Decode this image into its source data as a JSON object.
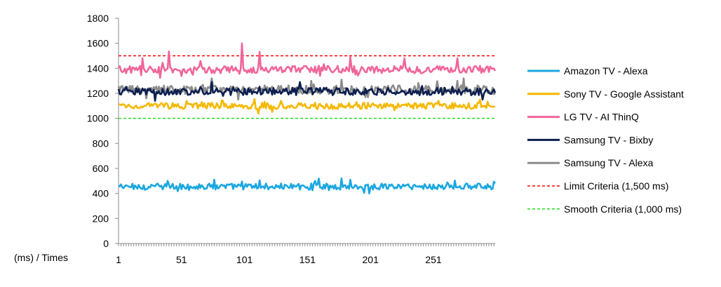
{
  "chart_data": {
    "type": "line",
    "title": "",
    "xlabel": "(ms) / Times",
    "ylabel": "",
    "ylim": [
      0,
      1800
    ],
    "y_ticks": [
      0,
      200,
      400,
      600,
      800,
      1000,
      1200,
      1400,
      1600,
      1800
    ],
    "x_range": [
      1,
      300
    ],
    "x_tick_labels": [
      "1",
      "51",
      "101",
      "151",
      "201",
      "251"
    ],
    "legend_position": "right",
    "grid": false,
    "series": [
      {
        "name": "Amazon TV - Alexa",
        "color": "#1aa7e0",
        "style": "solid",
        "mean": 455,
        "spread": 25,
        "peaks": [
          [
            40,
            500
          ],
          [
            77,
            510
          ],
          [
            99,
            495
          ],
          [
            113,
            505
          ],
          [
            157,
            500
          ],
          [
            185,
            510
          ],
          [
            196,
            405
          ],
          [
            200,
            400
          ]
        ]
      },
      {
        "name": "Sony TV - Google Assistant",
        "color": "#f5b800",
        "style": "solid",
        "mean": 1100,
        "spread": 25,
        "peaks": [
          [
            130,
            1140
          ],
          [
            255,
            1140
          ],
          [
            288,
            1150
          ]
        ]
      },
      {
        "name": "LG TV - AI ThinQ",
        "color": "#f0659a",
        "style": "solid",
        "mean": 1390,
        "spread": 30,
        "peaks": [
          [
            41,
            1535
          ],
          [
            99,
            1600
          ],
          [
            113,
            1530
          ],
          [
            20,
            1480
          ],
          [
            185,
            1490
          ],
          [
            228,
            1480
          ],
          [
            270,
            1480
          ]
        ]
      },
      {
        "name": "Samsung TV - Bixby",
        "color": "#0d1f4f",
        "style": "solid",
        "mean": 1215,
        "spread": 30,
        "peaks": [
          [
            30,
            1140
          ],
          [
            75,
            1290
          ],
          [
            145,
            1290
          ],
          [
            290,
            1150
          ]
        ]
      },
      {
        "name": "Samsung TV - Alexa",
        "color": "#8c8c8c",
        "style": "solid",
        "mean": 1230,
        "spread": 35,
        "peaks": [
          [
            75,
            1320
          ],
          [
            96,
            1150
          ],
          [
            178,
            1310
          ],
          [
            275,
            1320
          ]
        ]
      },
      {
        "name": "Limit Criteria (1,500 ms)",
        "color": "#ff0000",
        "style": "dashed",
        "constant": 1500
      },
      {
        "name": "Smooth Criteria (1,000 ms)",
        "color": "#22dd22",
        "style": "dashed",
        "constant": 1000
      }
    ]
  }
}
